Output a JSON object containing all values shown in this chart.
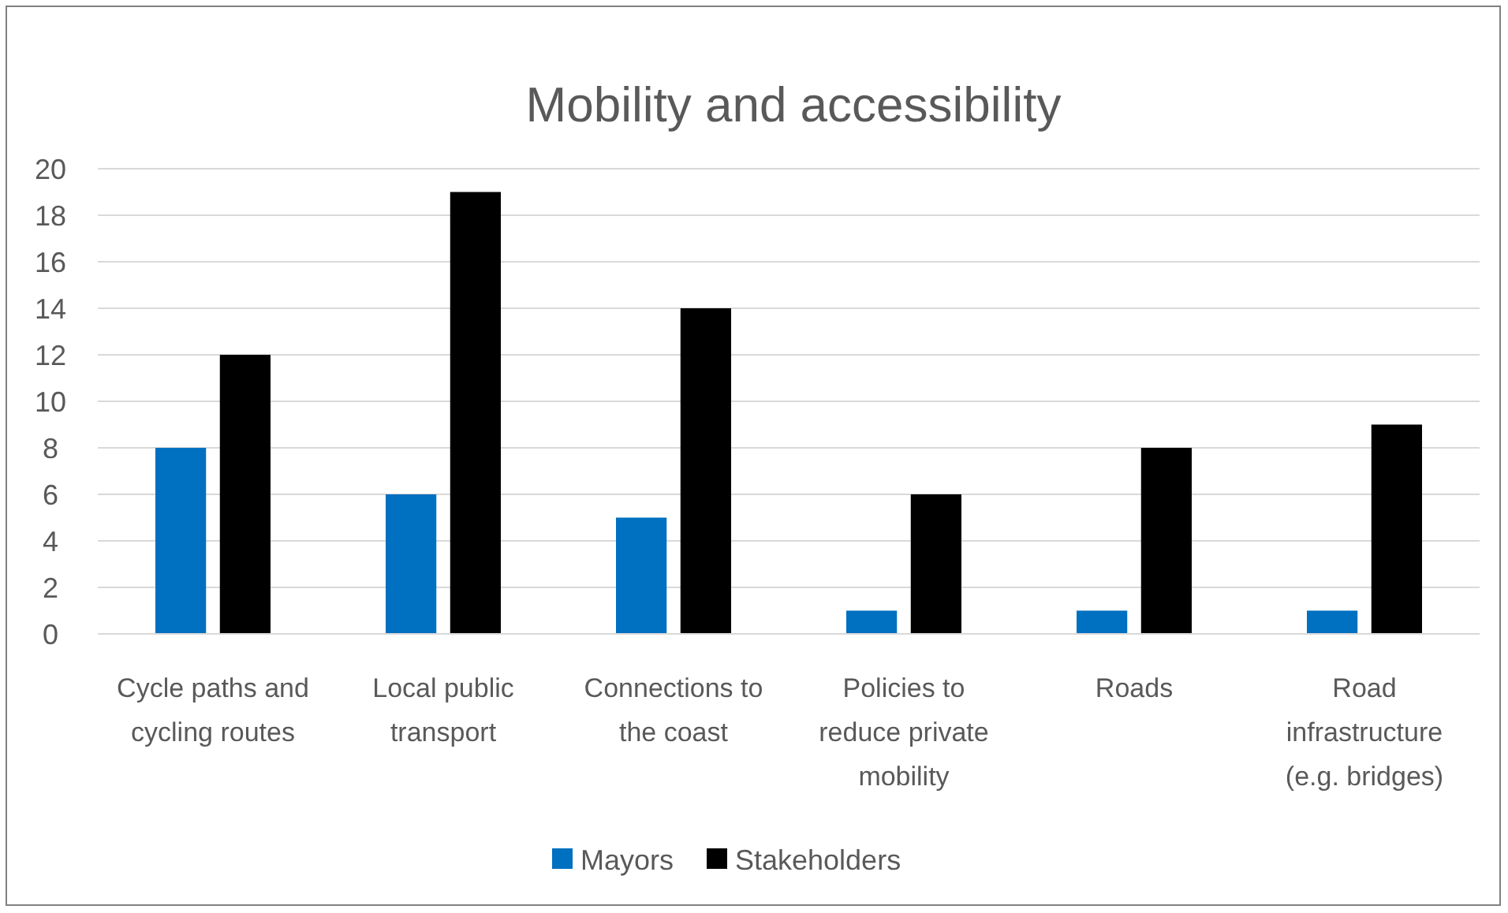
{
  "chart_data": {
    "type": "bar",
    "title": "Mobility and accessibility",
    "categories": [
      "Cycle paths and cycling routes",
      "Local public transport",
      "Connections to the coast",
      "Policies to reduce private mobility",
      "Roads",
      "Road infrastructure (e.g. bridges)"
    ],
    "series": [
      {
        "name": "Mayors",
        "color": "#0070c0",
        "values": [
          8,
          6,
          5,
          1,
          1,
          1
        ]
      },
      {
        "name": "Stakeholders",
        "color": "#000000",
        "values": [
          12,
          19,
          14,
          6,
          8,
          9
        ]
      }
    ],
    "ylim": [
      0,
      20
    ],
    "yticks": [
      0,
      2,
      4,
      6,
      8,
      10,
      12,
      14,
      16,
      18,
      20
    ],
    "grid": "y",
    "legend": "bottom"
  }
}
